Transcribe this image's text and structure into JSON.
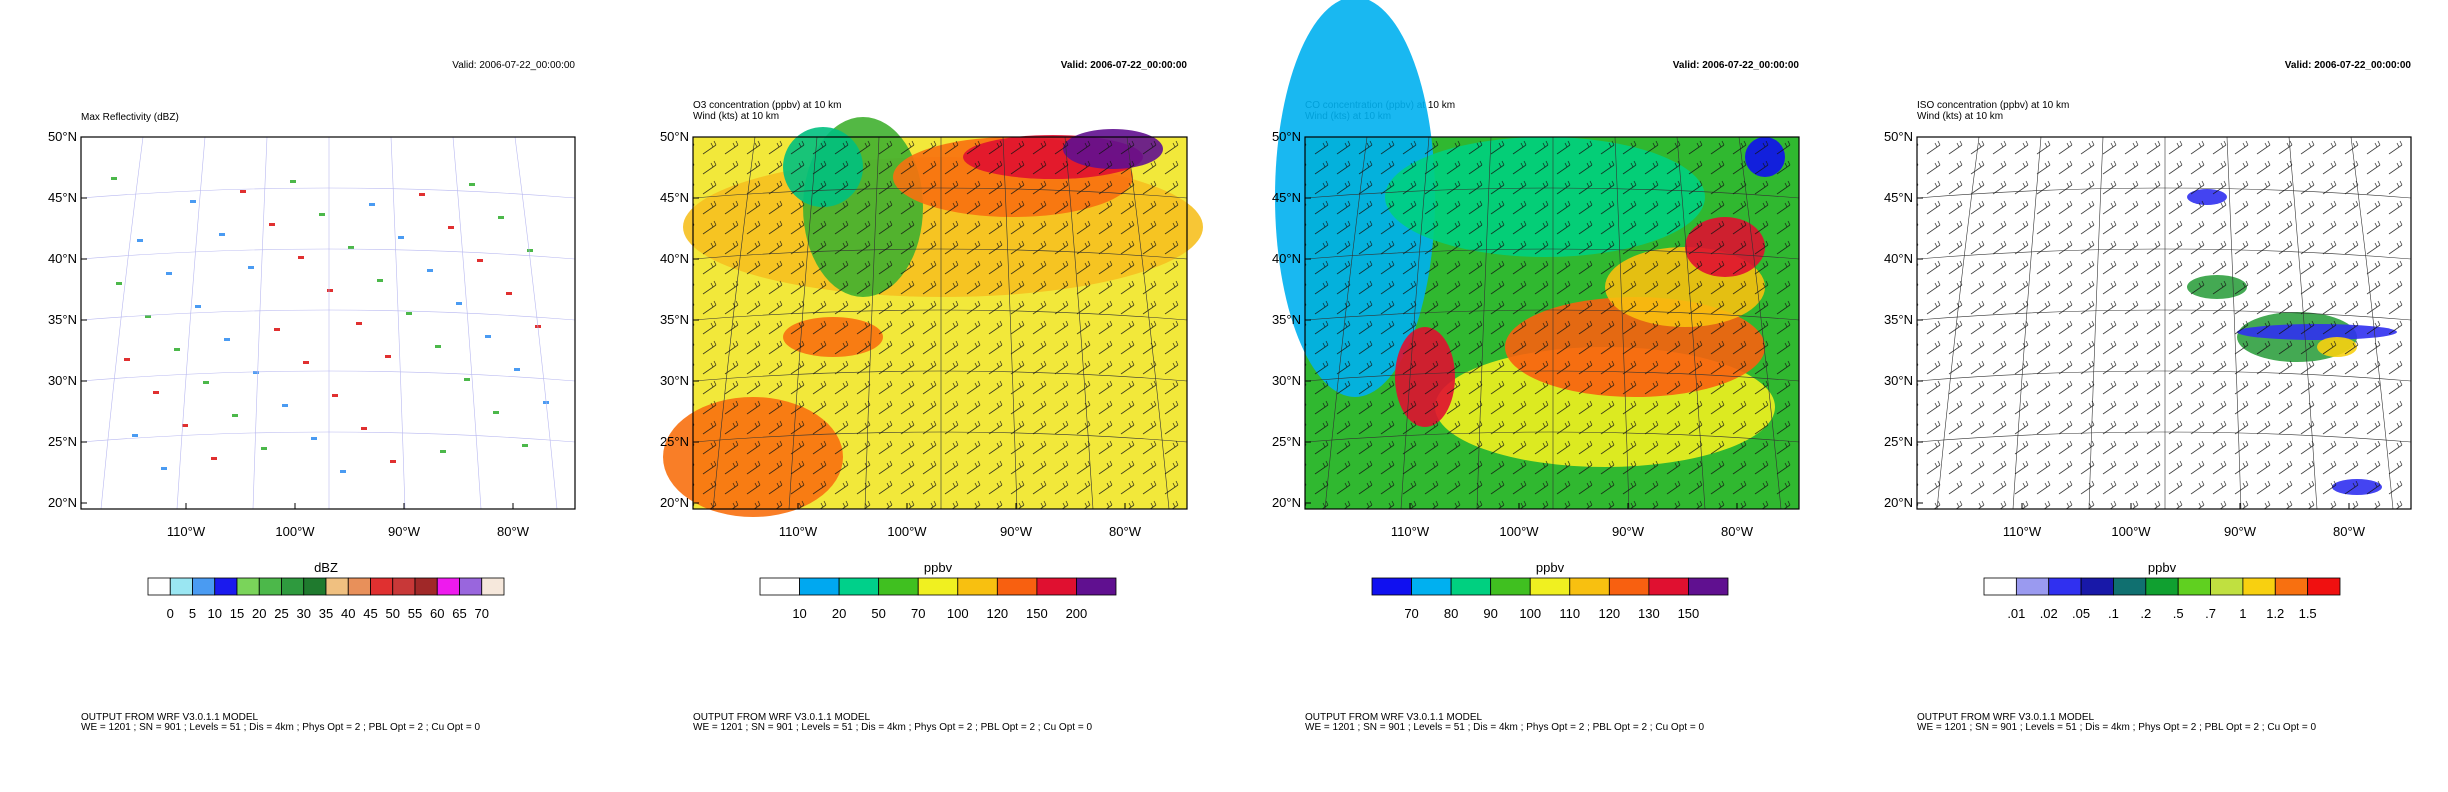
{
  "panels": [
    {
      "valid": "Valid: 2006-07-22_00:00:00",
      "title_lines": [
        "Max Reflectivity   (dBZ)"
      ],
      "lat_labels": [
        "50°N",
        "45°N",
        "40°N",
        "35°N",
        "30°N",
        "25°N",
        "20°N"
      ],
      "lon_labels": [
        "110°W",
        "100°W",
        "90°W",
        "80°W"
      ],
      "colorbar_label": "dBZ",
      "colorbar_levels": [
        "0",
        "5",
        "10",
        "15",
        "20",
        "25",
        "30",
        "35",
        "40",
        "45",
        "50",
        "55",
        "60",
        "65",
        "70"
      ],
      "colorbar_colors": [
        "#ffffff",
        "#9ae6f2",
        "#4a9bf2",
        "#1a1aee",
        "#7ad45a",
        "#4cb84a",
        "#2e9a3e",
        "#1f7a2e",
        "#f0c080",
        "#e8905a",
        "#e03030",
        "#c83838",
        "#a02828",
        "#ee1aee",
        "#9966dd",
        "#f6e8dc"
      ],
      "footer_lines": [
        "OUTPUT FROM WRF V3.0.1.1 MODEL",
        "WE = 1201 ; SN = 901 ; Levels = 51 ; Dis = 4km ; Phys Opt = 2 ; PBL Opt = 2 ; Cu Opt = 0"
      ]
    },
    {
      "valid": "Valid: 2006-07-22_00:00:00",
      "title_lines": [
        "O3 concentration   (ppbv)     at    10 km",
        "Wind    (kts)     at    10 km"
      ],
      "lat_labels": [
        "50°N",
        "45°N",
        "40°N",
        "35°N",
        "30°N",
        "25°N",
        "20°N"
      ],
      "lon_labels": [
        "110°W",
        "100°W",
        "90°W",
        "80°W"
      ],
      "colorbar_label": "ppbv",
      "colorbar_levels": [
        "10",
        "20",
        "50",
        "70",
        "100",
        "120",
        "150",
        "200"
      ],
      "colorbar_colors": [
        "#ffffff",
        "#00a8f0",
        "#00d08a",
        "#40c020",
        "#f0f020",
        "#f8c010",
        "#f86010",
        "#e01030",
        "#601090"
      ],
      "footer_lines": [
        "OUTPUT FROM WRF V3.0.1.1 MODEL",
        "WE = 1201 ; SN = 901 ; Levels = 51 ; Dis = 4km ; Phys Opt = 2 ; PBL Opt = 2 ; Cu Opt = 0"
      ]
    },
    {
      "valid": "Valid: 2006-07-22_00:00:00",
      "title_lines": [
        "CO concentration   (ppbv)     at    10 km",
        "Wind    (kts)     at    10 km"
      ],
      "lat_labels": [
        "50°N",
        "45°N",
        "40°N",
        "35°N",
        "30°N",
        "25°N",
        "20°N"
      ],
      "lon_labels": [
        "110°W",
        "100°W",
        "90°W",
        "80°W"
      ],
      "colorbar_label": "ppbv",
      "colorbar_levels": [
        "70",
        "80",
        "90",
        "100",
        "110",
        "120",
        "130",
        "150"
      ],
      "colorbar_colors": [
        "#1010f0",
        "#00b0f0",
        "#00d080",
        "#40c020",
        "#f0f020",
        "#f8c010",
        "#f86010",
        "#e01030",
        "#601090"
      ],
      "footer_lines": [
        "OUTPUT FROM WRF V3.0.1.1 MODEL",
        "WE = 1201 ; SN = 901 ; Levels = 51 ; Dis = 4km ; Phys Opt = 2 ; PBL Opt = 2 ; Cu Opt = 0"
      ]
    },
    {
      "valid": "Valid: 2006-07-22_00:00:00",
      "title_lines": [
        "ISO concentration   (ppbv)     at    10 km",
        "Wind    (kts)     at    10 km"
      ],
      "lat_labels": [
        "50°N",
        "45°N",
        "40°N",
        "35°N",
        "30°N",
        "25°N",
        "20°N"
      ],
      "lon_labels": [
        "110°W",
        "100°W",
        "90°W",
        "80°W"
      ],
      "colorbar_label": "ppbv",
      "colorbar_levels": [
        ".01",
        ".02",
        ".05",
        ".1",
        ".2",
        ".5",
        ".7",
        "1",
        "1.2",
        "1.5"
      ],
      "colorbar_colors": [
        "#ffffff",
        "#9a9af0",
        "#3030f0",
        "#1818a8",
        "#107070",
        "#10a030",
        "#60d020",
        "#c0e040",
        "#f8d010",
        "#f87010",
        "#f01010"
      ],
      "footer_lines": [
        "OUTPUT FROM WRF V3.0.1.1 MODEL",
        "WE = 1201 ; SN = 901 ; Levels = 51 ; Dis = 4km ; Phys Opt = 2 ; PBL Opt = 2 ; Cu Opt = 0"
      ]
    }
  ]
}
